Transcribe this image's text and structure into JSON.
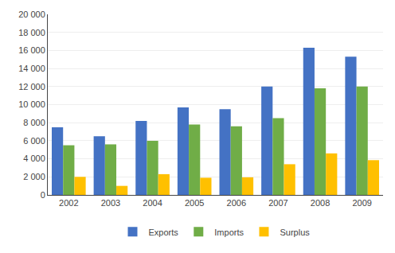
{
  "chart_data": {
    "type": "bar",
    "categories": [
      "2002",
      "2003",
      "2004",
      "2005",
      "2006",
      "2007",
      "2008",
      "2009"
    ],
    "series": [
      {
        "name": "Exports",
        "color": "#4472C4",
        "values": [
          7500,
          6500,
          8200,
          9700,
          9500,
          12000,
          16300,
          15300
        ]
      },
      {
        "name": "Imports",
        "color": "#70AD47",
        "values": [
          5500,
          5600,
          6000,
          7800,
          7600,
          8500,
          11800,
          12000
        ]
      },
      {
        "name": "Surplus",
        "color": "#FFC000",
        "values": [
          2000,
          1000,
          2300,
          1900,
          1950,
          3400,
          4600,
          3850
        ]
      }
    ],
    "ylim": [
      0,
      20000
    ],
    "yticks": [
      0,
      {
        "value": 2000,
        "label": "2 000"
      },
      {
        "value": 4000,
        "label": "4 000"
      },
      {
        "value": 6000,
        "label": "6 000"
      },
      {
        "value": 8000,
        "label": "8 000"
      },
      {
        "value": 10000,
        "label": "10 000"
      },
      {
        "value": 12000,
        "label": "12 000"
      },
      {
        "value": 14000,
        "label": "14 000"
      },
      {
        "value": 16000,
        "label": "16 000"
      },
      {
        "value": 18000,
        "label": "18 000"
      },
      {
        "value": 20000,
        "label": "20 000"
      }
    ],
    "grid": true,
    "legend": "bottom"
  }
}
